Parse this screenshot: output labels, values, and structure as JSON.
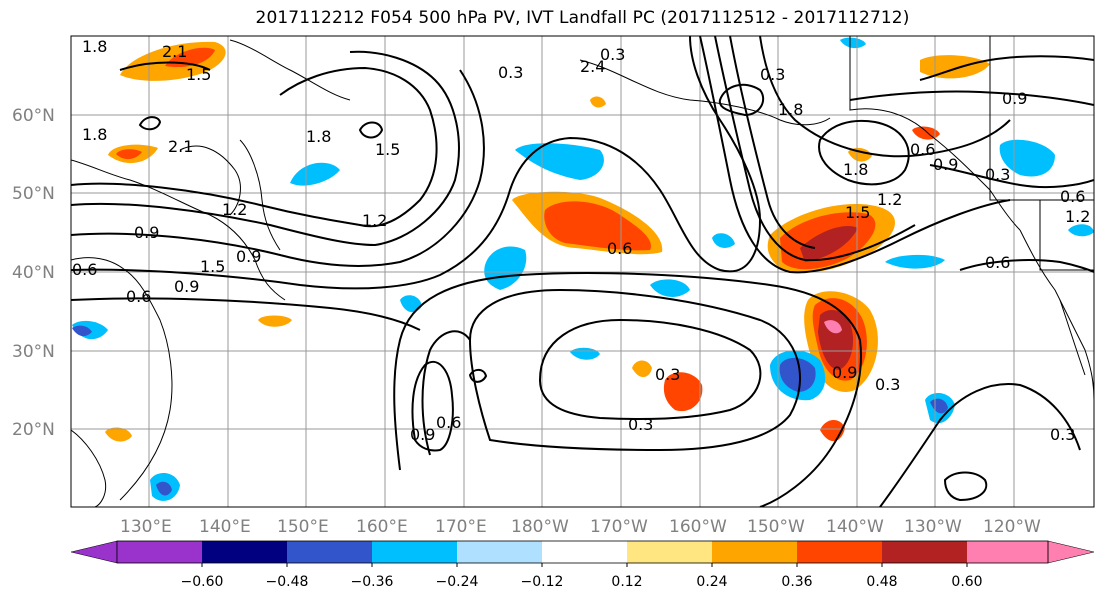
{
  "title": "2017112212 F054 500 hPa PV, IVT Landfall PC (2017112512 - 2017112712)",
  "map": {
    "lat_labels": [
      "60°N",
      "50°N",
      "40°N",
      "30°N",
      "20°N"
    ],
    "lon_labels": [
      "130°E",
      "140°E",
      "150°E",
      "160°E",
      "170°E",
      "180°W",
      "170°W",
      "160°W",
      "150°W",
      "140°W",
      "130°W",
      "120°W"
    ],
    "contour_labels": [
      "1.8",
      "2.1",
      "1.5",
      "0.3",
      "2.4",
      "1.8",
      "0.9",
      "1.8",
      "2.1",
      "1.8",
      "1.5",
      "1.2",
      "0.9",
      "0.6",
      "0.9",
      "1.5",
      "0.9",
      "0.6",
      "1.2",
      "0.6",
      "0.3",
      "0.3",
      "1.8",
      "1.5",
      "1.2",
      "0.6",
      "0.3",
      "0.6",
      "0.9",
      "1.2",
      "0.6",
      "0.9",
      "0.3",
      "0.3",
      "0.9",
      "0.6",
      "0.3",
      "0.3"
    ]
  },
  "colorbar": {
    "tick_labels": [
      "−0.60",
      "−0.48",
      "−0.36",
      "−0.24",
      "−0.12",
      "0.12",
      "0.24",
      "0.36",
      "0.48",
      "0.60"
    ],
    "colors": [
      "#9933cc",
      "#000080",
      "#3355cc",
      "#00bfff",
      "#b0e0ff",
      "#ffffff",
      "#ffe680",
      "#ffa500",
      "#ff4500",
      "#b22222",
      "#ff80b0"
    ]
  },
  "colors": {
    "grid": "#999999",
    "contour": "#000000",
    "coast": "#000000"
  }
}
